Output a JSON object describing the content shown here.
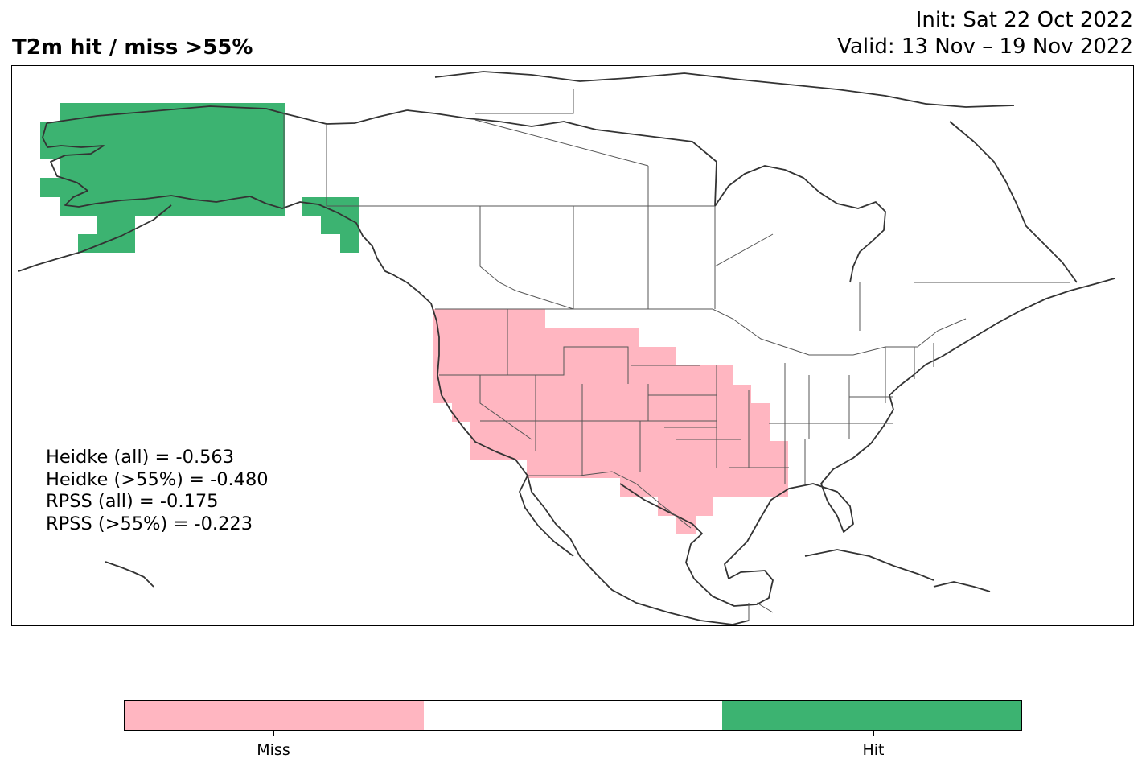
{
  "title": "T2m hit / miss  >55%",
  "init": "Init: Sat 22 Oct 2022",
  "valid": "Valid: 13 Nov – 19 Nov 2022",
  "stats": [
    "Heidke (all) = -0.563",
    "Heidke (>55%) = -0.480",
    "RPSS (all) = -0.175",
    "RPSS (>55%) = -0.223"
  ],
  "colorbar": {
    "colors": [
      "#ffb6c1",
      "#ffffff",
      "#3cb371"
    ],
    "labels": [
      "Miss",
      "Hit"
    ]
  },
  "map": {
    "hit_color": "#3cb371",
    "miss_color": "#ffb6c1",
    "coast_color": "#333333",
    "hit_regions": [
      "Alaska",
      "Alaska panhandle"
    ],
    "miss_regions": [
      "Western US",
      "Southern Plains",
      "Lower Mississippi Valley"
    ]
  }
}
